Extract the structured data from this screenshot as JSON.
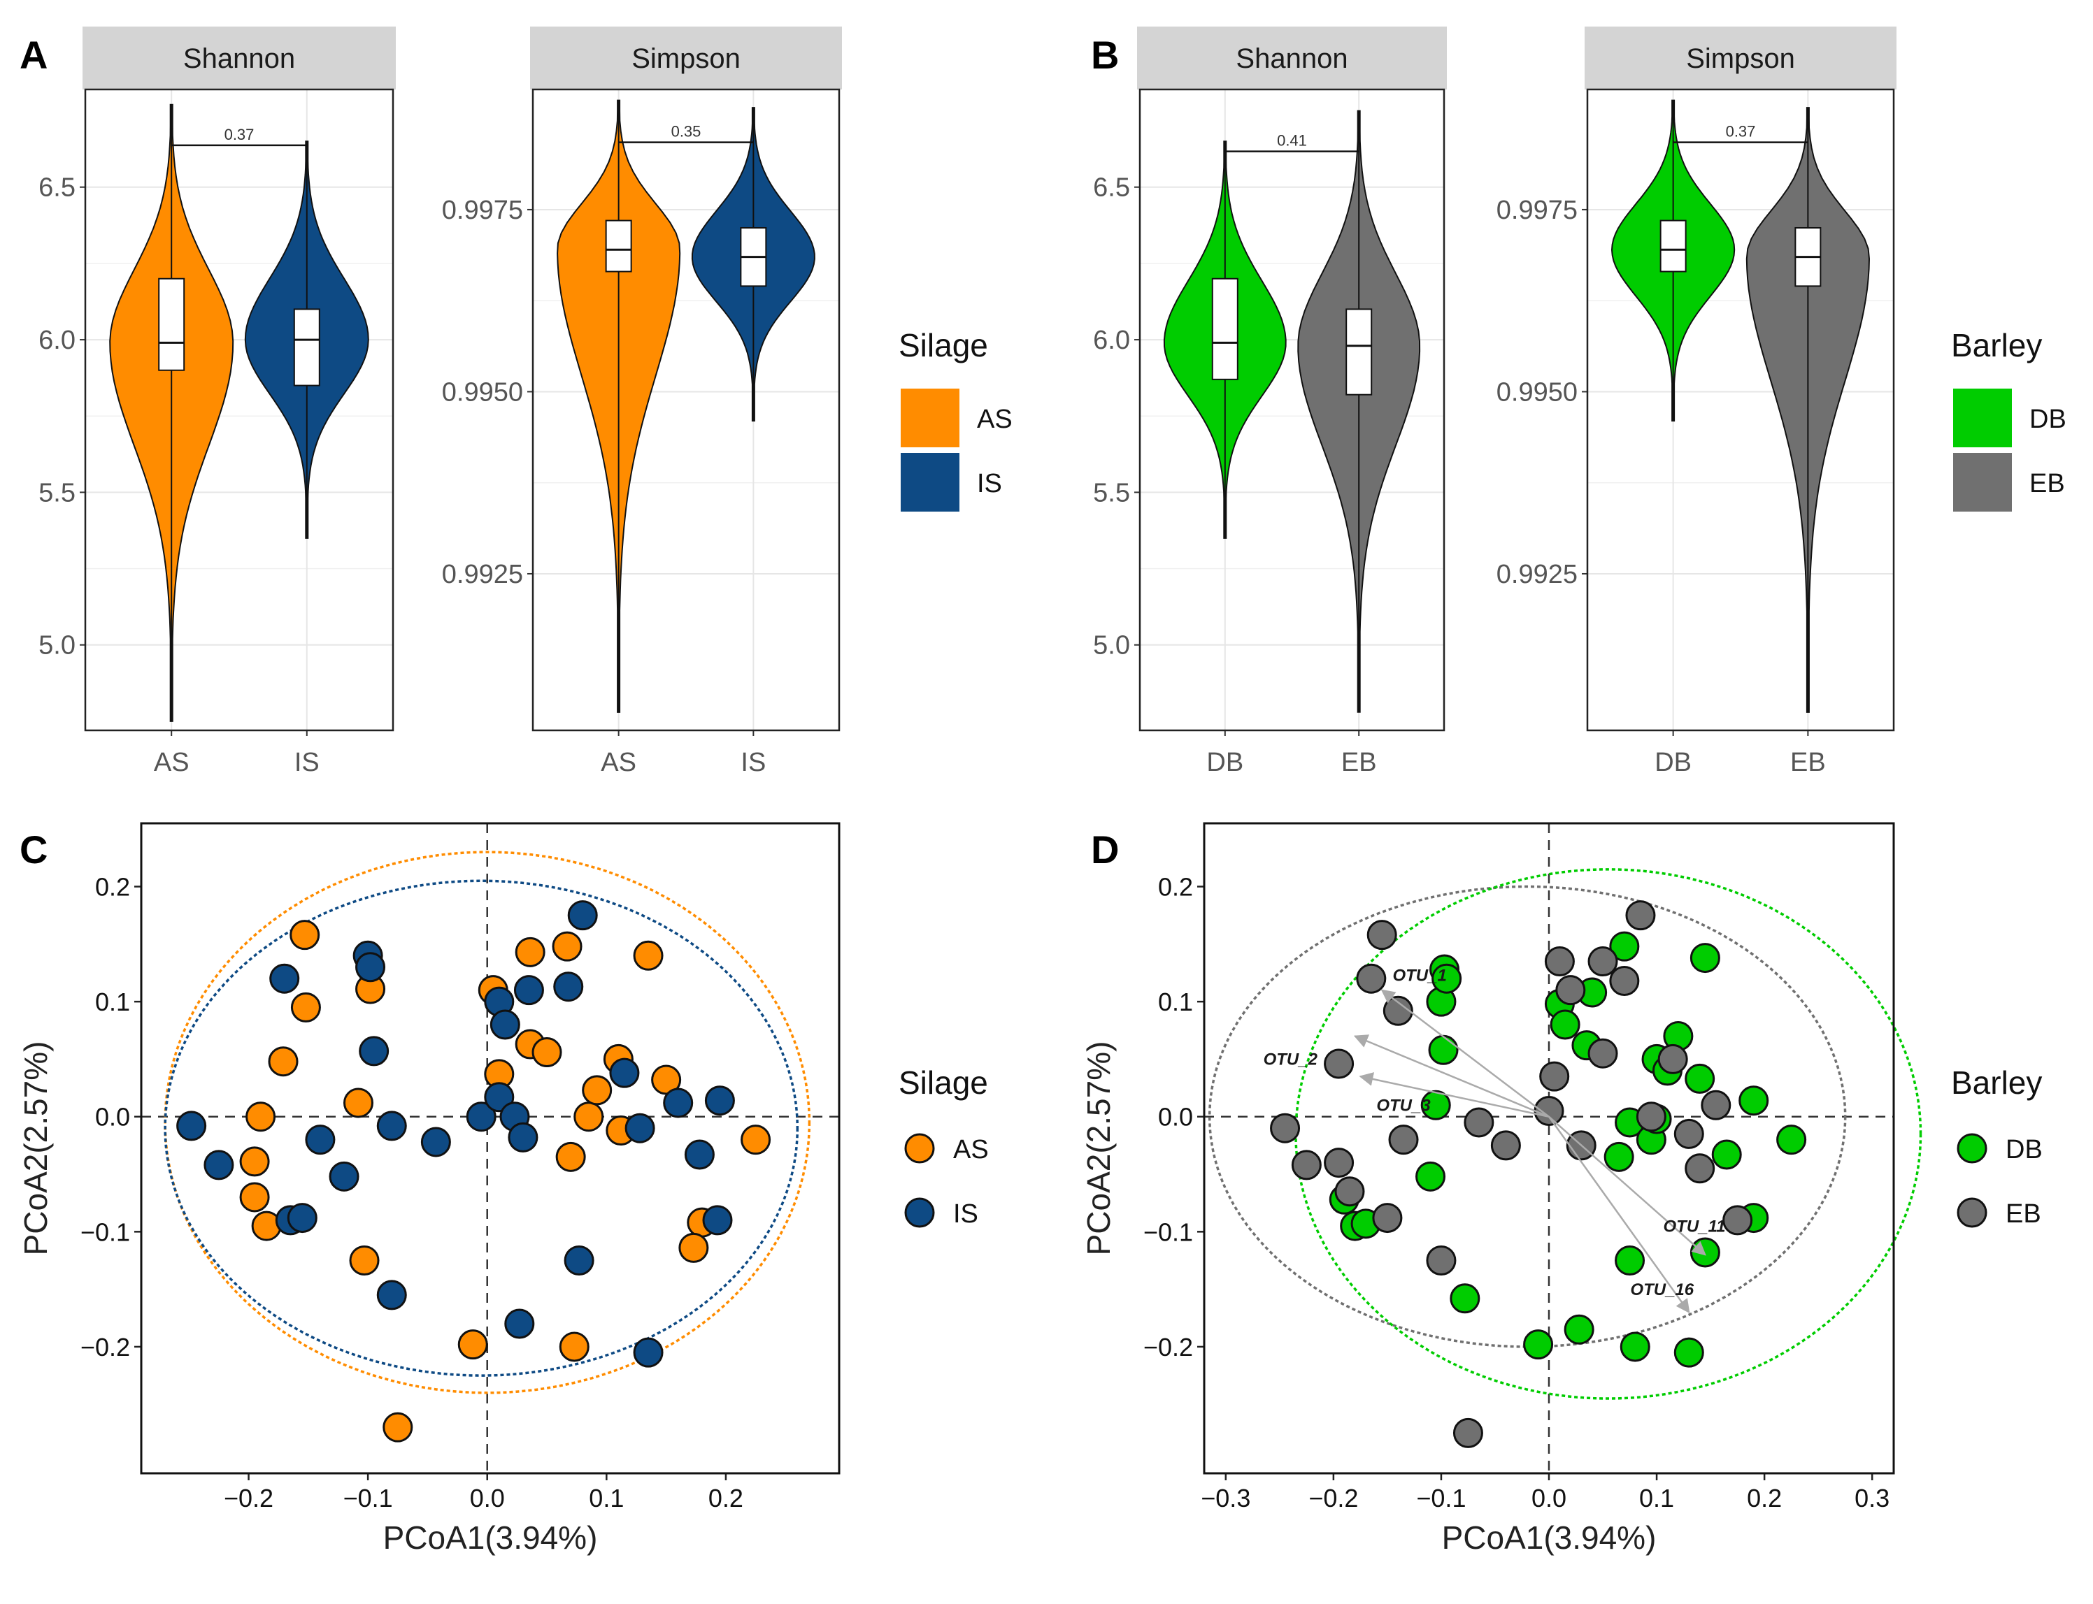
{
  "colors": {
    "AS": "#FF8C00",
    "IS": "#0E4A84",
    "DB": "#00CC00",
    "EB": "#707070",
    "strip": "#D4D4D4",
    "grid": "#E6E6E6"
  },
  "chart_data": [
    {
      "type": "violin",
      "id": "A",
      "panel_label": "A",
      "facet": "Shannon",
      "categories": [
        "AS",
        "IS"
      ],
      "yticks": [
        5.0,
        5.5,
        6.0,
        6.5
      ],
      "ylim": [
        4.72,
        6.82
      ],
      "p_value": "0.37",
      "groups": [
        {
          "name": "AS",
          "min": 4.75,
          "q1": 5.9,
          "median": 5.99,
          "q3": 6.2,
          "max": 6.77
        },
        {
          "name": "IS",
          "min": 5.35,
          "q1": 5.85,
          "median": 6.0,
          "q3": 6.1,
          "max": 6.65
        }
      ]
    },
    {
      "type": "violin",
      "id": "A2",
      "facet": "Simpson",
      "categories": [
        "AS",
        "IS"
      ],
      "yticks": [
        0.9925,
        0.995,
        0.9975
      ],
      "ytick_labels": [
        "0.9925",
        "0.9950",
        "0.9975"
      ],
      "ylim": [
        0.99035,
        0.99915
      ],
      "p_value": "0.35",
      "groups": [
        {
          "name": "AS",
          "min": 0.9906,
          "q1": 0.99665,
          "median": 0.99695,
          "q3": 0.99735,
          "max": 0.999
        },
        {
          "name": "IS",
          "min": 0.9946,
          "q1": 0.99645,
          "median": 0.99685,
          "q3": 0.99725,
          "max": 0.9989
        }
      ]
    },
    {
      "type": "violin",
      "id": "B",
      "panel_label": "B",
      "facet": "Shannon",
      "categories": [
        "DB",
        "EB"
      ],
      "yticks": [
        5.0,
        5.5,
        6.0,
        6.5
      ],
      "ylim": [
        4.72,
        6.82
      ],
      "p_value": "0.41",
      "groups": [
        {
          "name": "DB",
          "min": 5.35,
          "q1": 5.87,
          "median": 5.99,
          "q3": 6.2,
          "max": 6.65
        },
        {
          "name": "EB",
          "min": 4.78,
          "q1": 5.82,
          "median": 5.98,
          "q3": 6.1,
          "max": 6.75
        }
      ]
    },
    {
      "type": "violin",
      "id": "B2",
      "facet": "Simpson",
      "categories": [
        "DB",
        "EB"
      ],
      "yticks": [
        0.9925,
        0.995,
        0.9975
      ],
      "ytick_labels": [
        "0.9925",
        "0.9950",
        "0.9975"
      ],
      "ylim": [
        0.99035,
        0.99915
      ],
      "p_value": "0.37",
      "groups": [
        {
          "name": "DB",
          "min": 0.9946,
          "q1": 0.99665,
          "median": 0.99695,
          "q3": 0.99735,
          "max": 0.999
        },
        {
          "name": "EB",
          "min": 0.9906,
          "q1": 0.99645,
          "median": 0.99685,
          "q3": 0.99725,
          "max": 0.9989
        }
      ]
    },
    {
      "type": "scatter",
      "id": "C",
      "panel_label": "C",
      "xlabel": "PCoA1(3.94%)",
      "ylabel": "PCoA2(2.57%)",
      "xlim": [
        -0.29,
        0.295
      ],
      "ylim": [
        -0.31,
        0.255
      ],
      "xticks": [
        -0.2,
        -0.1,
        0.0,
        0.1,
        0.2
      ],
      "yticks": [
        -0.2,
        -0.1,
        0.0,
        0.1,
        0.2
      ],
      "xtick_labels": [
        "−0.2",
        "−0.1",
        "0.0",
        "0.1",
        "0.2"
      ],
      "ytick_labels": [
        "−0.2",
        "−0.1",
        "0.0",
        "0.1",
        "0.2"
      ],
      "ellipses": [
        {
          "group": "AS",
          "cx": 0.0,
          "cy": -0.005,
          "rx": 0.27,
          "ry": 0.235
        },
        {
          "group": "IS",
          "cx": -0.005,
          "cy": -0.01,
          "rx": 0.265,
          "ry": 0.215
        }
      ],
      "series": [
        {
          "name": "AS",
          "points": [
            [
              -0.153,
              0.158
            ],
            [
              -0.152,
              0.095
            ],
            [
              -0.171,
              0.048
            ],
            [
              -0.19,
              0.0
            ],
            [
              -0.195,
              -0.039
            ],
            [
              -0.195,
              -0.07
            ],
            [
              -0.185,
              -0.095
            ],
            [
              -0.108,
              0.012
            ],
            [
              -0.098,
              0.111
            ],
            [
              -0.103,
              -0.125
            ],
            [
              -0.075,
              -0.27
            ],
            [
              -0.012,
              -0.198
            ],
            [
              0.005,
              0.11
            ],
            [
              0.01,
              0.037
            ],
            [
              0.036,
              0.143
            ],
            [
              0.036,
              0.063
            ],
            [
              0.05,
              0.056
            ],
            [
              0.067,
              0.148
            ],
            [
              0.085,
              0.0
            ],
            [
              0.092,
              0.023
            ],
            [
              0.11,
              0.05
            ],
            [
              0.112,
              -0.012
            ],
            [
              0.135,
              0.14
            ],
            [
              0.15,
              0.032
            ],
            [
              0.07,
              -0.035
            ],
            [
              0.18,
              -0.092
            ],
            [
              0.173,
              -0.114
            ],
            [
              0.225,
              -0.02
            ],
            [
              0.073,
              -0.2
            ]
          ]
        },
        {
          "name": "IS",
          "points": [
            [
              -0.248,
              -0.008
            ],
            [
              -0.225,
              -0.042
            ],
            [
              -0.17,
              0.12
            ],
            [
              -0.165,
              -0.09
            ],
            [
              -0.155,
              -0.088
            ],
            [
              -0.14,
              -0.02
            ],
            [
              -0.12,
              -0.052
            ],
            [
              -0.1,
              0.14
            ],
            [
              -0.098,
              0.13
            ],
            [
              -0.095,
              0.057
            ],
            [
              -0.08,
              -0.155
            ],
            [
              -0.08,
              -0.008
            ],
            [
              -0.043,
              -0.022
            ],
            [
              -0.005,
              0.0
            ],
            [
              0.01,
              0.1
            ],
            [
              0.015,
              0.08
            ],
            [
              0.01,
              0.017
            ],
            [
              0.023,
              0.0
            ],
            [
              0.035,
              0.11
            ],
            [
              0.068,
              0.113
            ],
            [
              0.08,
              0.175
            ],
            [
              0.115,
              0.038
            ],
            [
              0.128,
              -0.01
            ],
            [
              0.135,
              -0.205
            ],
            [
              0.16,
              0.012
            ],
            [
              0.178,
              -0.033
            ],
            [
              0.193,
              -0.09
            ],
            [
              0.195,
              0.014
            ],
            [
              0.03,
              -0.018
            ],
            [
              0.077,
              -0.125
            ],
            [
              0.027,
              -0.18
            ]
          ]
        }
      ]
    },
    {
      "type": "scatter",
      "id": "D",
      "panel_label": "D",
      "xlabel": "PCoA1(3.94%)",
      "ylabel": "PCoA2(2.57%)",
      "xlim": [
        -0.32,
        0.32
      ],
      "ylim": [
        -0.31,
        0.255
      ],
      "xticks": [
        -0.3,
        -0.2,
        -0.1,
        0.0,
        0.1,
        0.2,
        0.3
      ],
      "yticks": [
        -0.2,
        -0.1,
        0.0,
        0.1,
        0.2
      ],
      "xtick_labels": [
        "−0.3",
        "−0.2",
        "−0.1",
        "0.0",
        "0.1",
        "0.2",
        "0.3"
      ],
      "ytick_labels": [
        "−0.2",
        "−0.1",
        "0.0",
        "0.1",
        "0.2"
      ],
      "ellipses": [
        {
          "group": "EB",
          "cx": -0.02,
          "cy": 0.0,
          "rx": 0.295,
          "ry": 0.2
        },
        {
          "group": "DB",
          "cx": 0.055,
          "cy": -0.015,
          "rx": 0.29,
          "ry": 0.23
        }
      ],
      "series": [
        {
          "name": "DB",
          "points": [
            [
              -0.1,
              0.1
            ],
            [
              -0.097,
              0.128
            ],
            [
              -0.095,
              0.12
            ],
            [
              -0.098,
              0.058
            ],
            [
              -0.105,
              0.01
            ],
            [
              -0.11,
              -0.052
            ],
            [
              -0.19,
              -0.072
            ],
            [
              -0.18,
              -0.095
            ],
            [
              -0.17,
              -0.093
            ],
            [
              -0.078,
              -0.158
            ],
            [
              -0.01,
              -0.198
            ],
            [
              0.01,
              0.098
            ],
            [
              0.015,
              0.08
            ],
            [
              0.04,
              0.108
            ],
            [
              0.035,
              0.062
            ],
            [
              0.07,
              0.148
            ],
            [
              0.065,
              -0.035
            ],
            [
              0.075,
              -0.005
            ],
            [
              0.075,
              -0.125
            ],
            [
              0.095,
              -0.02
            ],
            [
              0.1,
              0.05
            ],
            [
              0.11,
              0.04
            ],
            [
              0.1,
              -0.002
            ],
            [
              0.12,
              0.07
            ],
            [
              0.14,
              0.033
            ],
            [
              0.145,
              -0.118
            ],
            [
              0.145,
              0.138
            ],
            [
              0.165,
              -0.033
            ],
            [
              0.19,
              0.014
            ],
            [
              0.19,
              -0.088
            ],
            [
              0.225,
              -0.02
            ],
            [
              0.08,
              -0.2
            ],
            [
              0.13,
              -0.205
            ],
            [
              0.028,
              -0.185
            ]
          ]
        },
        {
          "name": "EB",
          "points": [
            [
              -0.155,
              0.158
            ],
            [
              -0.165,
              0.12
            ],
            [
              -0.14,
              0.092
            ],
            [
              -0.195,
              0.046
            ],
            [
              -0.195,
              -0.04
            ],
            [
              -0.185,
              -0.065
            ],
            [
              -0.15,
              -0.088
            ],
            [
              -0.135,
              -0.02
            ],
            [
              -0.245,
              -0.01
            ],
            [
              -0.225,
              -0.042
            ],
            [
              -0.1,
              -0.125
            ],
            [
              -0.065,
              -0.005
            ],
            [
              -0.04,
              -0.025
            ],
            [
              0.0,
              0.005
            ],
            [
              0.01,
              0.135
            ],
            [
              0.02,
              0.11
            ],
            [
              0.03,
              -0.025
            ],
            [
              0.05,
              0.135
            ],
            [
              0.05,
              0.055
            ],
            [
              0.07,
              0.118
            ],
            [
              0.085,
              0.175
            ],
            [
              0.095,
              0.0
            ],
            [
              0.115,
              0.05
            ],
            [
              0.13,
              -0.015
            ],
            [
              0.14,
              -0.045
            ],
            [
              0.155,
              0.01
            ],
            [
              0.175,
              -0.09
            ],
            [
              0.005,
              0.035
            ],
            [
              -0.075,
              -0.275
            ]
          ]
        }
      ],
      "arrows": [
        {
          "label": "OTU_1",
          "x": -0.155,
          "y": 0.11,
          "lx": -0.12,
          "ly": 0.118
        },
        {
          "label": "OTU_2",
          "x": -0.18,
          "y": 0.07,
          "lx": -0.24,
          "ly": 0.045
        },
        {
          "label": "OTU_3",
          "x": -0.175,
          "y": 0.035,
          "lx": -0.135,
          "ly": 0.005
        },
        {
          "label": "OTU_11",
          "x": 0.145,
          "y": -0.12,
          "lx": 0.135,
          "ly": -0.1
        },
        {
          "label": "OTU_16",
          "x": 0.13,
          "y": -0.17,
          "lx": 0.105,
          "ly": -0.155
        }
      ]
    }
  ],
  "legends": [
    {
      "title": "Silage",
      "items": [
        "AS",
        "IS"
      ]
    },
    {
      "title": "Barley",
      "items": [
        "DB",
        "EB"
      ]
    },
    {
      "title": "Silage",
      "items": [
        "AS",
        "IS"
      ]
    },
    {
      "title": "Barley",
      "items": [
        "DB",
        "EB"
      ]
    }
  ]
}
